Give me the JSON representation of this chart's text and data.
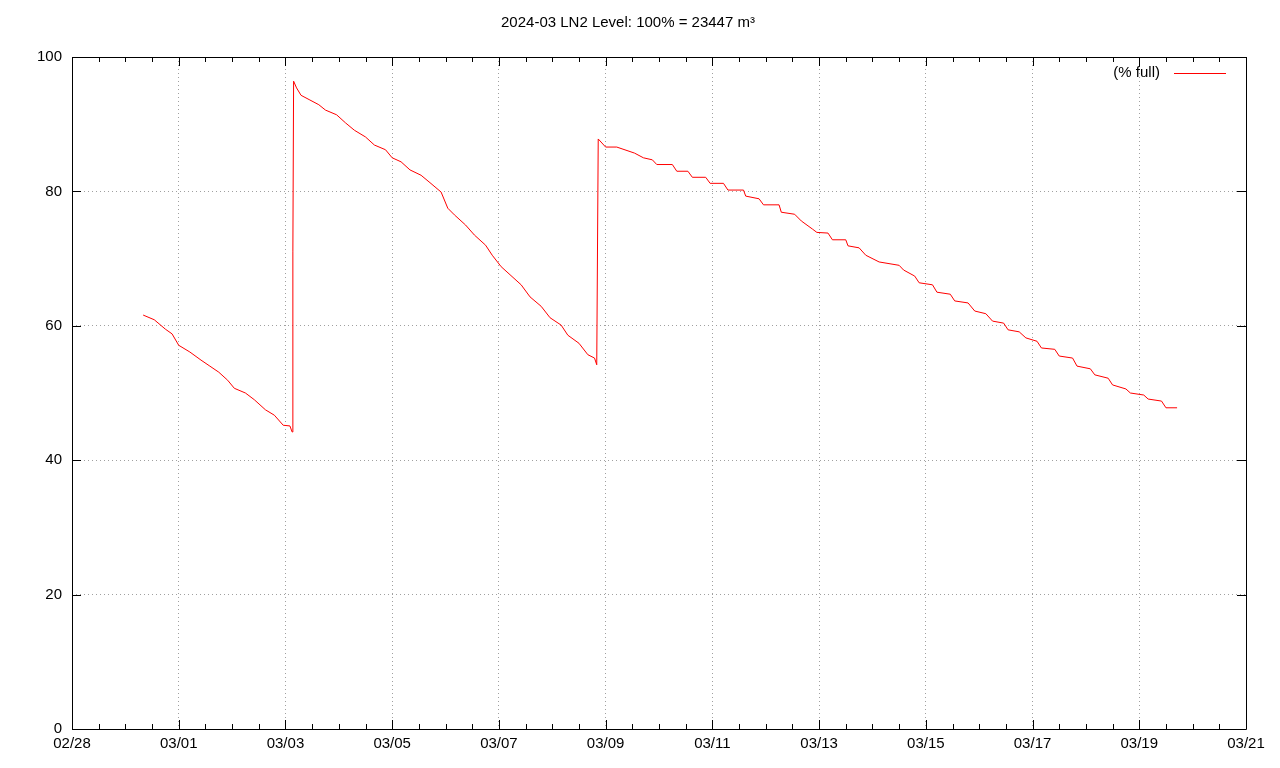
{
  "chart_data": {
    "type": "line",
    "title": "2024-03 LN2 Level: 100% = 23447 m³",
    "series": [
      {
        "name": "(% full)",
        "color": "#ff0000",
        "x": [
          "2024-02-29T08:00",
          "2024-02-29T13:00",
          "2024-02-29T18:00",
          "2024-02-29T21:00",
          "2024-03-01T00:00",
          "2024-03-01T05:00",
          "2024-03-01T10:00",
          "2024-03-01T14:00",
          "2024-03-01T18:00",
          "2024-03-01T22:00",
          "2024-03-02T01:00",
          "2024-03-02T06:00",
          "2024-03-02T10:00",
          "2024-03-02T15:00",
          "2024-03-02T19:00",
          "2024-03-02T23:00",
          "2024-03-03T02:00",
          "2024-03-03T03:00",
          "2024-03-03T03:20",
          "2024-03-03T03:40",
          "2024-03-03T05:00",
          "2024-03-03T07:00",
          "2024-03-03T11:00",
          "2024-03-03T15:00",
          "2024-03-03T18:00",
          "2024-03-03T23:00",
          "2024-03-04T03:00",
          "2024-03-04T07:00",
          "2024-03-04T12:00",
          "2024-03-04T16:00",
          "2024-03-04T21:00",
          "2024-03-05T00:00",
          "2024-03-05T04:00",
          "2024-03-05T08:00",
          "2024-03-05T13:00",
          "2024-03-05T17:00",
          "2024-03-05T22:00",
          "2024-03-06T01:00",
          "2024-03-06T04:00",
          "2024-03-06T09:00",
          "2024-03-06T13:00",
          "2024-03-06T18:00",
          "2024-03-06T21:00",
          "2024-03-07T01:00",
          "2024-03-07T05:00",
          "2024-03-07T10:00",
          "2024-03-07T14:00",
          "2024-03-07T19:00",
          "2024-03-07T23:00",
          "2024-03-08T04:00",
          "2024-03-08T07:00",
          "2024-03-08T12:00",
          "2024-03-08T16:00",
          "2024-03-08T19:00",
          "2024-03-08T20:00",
          "2024-03-08T20:40",
          "2024-03-09T00:00",
          "2024-03-09T05:00",
          "2024-03-09T13:00",
          "2024-03-09T17:00",
          "2024-03-09T21:00",
          "2024-03-09T23:00",
          "2024-03-10T06:00",
          "2024-03-10T08:00",
          "2024-03-10T13:00",
          "2024-03-10T15:00",
          "2024-03-10T21:00",
          "2024-03-10T23:00",
          "2024-03-11T05:00",
          "2024-03-11T07:00",
          "2024-03-11T14:00",
          "2024-03-11T15:00",
          "2024-03-11T21:00",
          "2024-03-11T23:00",
          "2024-03-12T06:00",
          "2024-03-12T07:00",
          "2024-03-12T13:00",
          "2024-03-12T16:00",
          "2024-03-12T21:00",
          "2024-03-12T23:00",
          "2024-03-13T04:00",
          "2024-03-13T06:00",
          "2024-03-13T12:00",
          "2024-03-13T13:00",
          "2024-03-13T18:00",
          "2024-03-13T21:00",
          "2024-03-14T03:00",
          "2024-03-14T12:00",
          "2024-03-14T14:00",
          "2024-03-14T19:00",
          "2024-03-14T21:00",
          "2024-03-15T03:00",
          "2024-03-15T05:00",
          "2024-03-15T11:00",
          "2024-03-15T13:00",
          "2024-03-15T19:00",
          "2024-03-15T22:00",
          "2024-03-16T03:00",
          "2024-03-16T06:00",
          "2024-03-16T11:00",
          "2024-03-16T13:00",
          "2024-03-16T18:00",
          "2024-03-16T21:00",
          "2024-03-17T02:00",
          "2024-03-17T04:00",
          "2024-03-17T10:00",
          "2024-03-17T12:00",
          "2024-03-17T18:00",
          "2024-03-17T20:00",
          "2024-03-18T02:00",
          "2024-03-18T04:00",
          "2024-03-18T10:00",
          "2024-03-18T12:00",
          "2024-03-18T18:00",
          "2024-03-18T20:00",
          "2024-03-19T02:00",
          "2024-03-19T04:00",
          "2024-03-19T10:00",
          "2024-03-19T12:00",
          "2024-03-19T17:00"
        ],
        "values": [
          61.6,
          60.9,
          59.5,
          58.8,
          57.1,
          56.1,
          54.9,
          54.0,
          53.1,
          51.9,
          50.7,
          50.0,
          49.0,
          47.5,
          46.7,
          45.2,
          45.1,
          44.2,
          71,
          96.4,
          95.4,
          94.3,
          93.6,
          92.9,
          92.1,
          91.4,
          90.2,
          89.1,
          88.1,
          86.9,
          86.2,
          85,
          84.4,
          83.2,
          82.4,
          81.3,
          79.9,
          77.5,
          76.5,
          75,
          73.5,
          72,
          70.5,
          68.8,
          67.6,
          66.1,
          64.3,
          62.9,
          61.2,
          60.1,
          58.6,
          57.4,
          55.7,
          55.2,
          54.2,
          87.8,
          86.6,
          86.6,
          85.7,
          85,
          84.7,
          84,
          84,
          83,
          83,
          82.1,
          82.1,
          81.2,
          81.2,
          80.2,
          80.2,
          79.3,
          78.9,
          78,
          78,
          76.9,
          76.6,
          75.6,
          74.4,
          73.9,
          73.8,
          72.8,
          72.8,
          71.9,
          71.6,
          70.5,
          69.5,
          69,
          68.3,
          67.4,
          66.4,
          66.1,
          65,
          64.7,
          63.7,
          63.4,
          62.2,
          61.8,
          60.7,
          60.4,
          59.4,
          59.1,
          58.2,
          57.7,
          56.7,
          56.5,
          55.5,
          55.2,
          54,
          53.6,
          52.7,
          52.2,
          51.2,
          50.6,
          50,
          49.7,
          49.1,
          48.8,
          47.8,
          47.8
        ]
      }
    ],
    "xlim": [
      "2024-02-28",
      "2024-03-21"
    ],
    "xticks": [
      {
        "value": "2024-02-28",
        "label": "02/28"
      },
      {
        "value": "2024-02-28T12:00",
        "label": null
      },
      {
        "value": "2024-02-29",
        "label": null
      },
      {
        "value": "2024-02-29T12:00",
        "label": null
      },
      {
        "value": "2024-03-01",
        "label": "03/01"
      },
      {
        "value": "2024-03-01T12:00",
        "label": null
      },
      {
        "value": "2024-03-02",
        "label": null
      },
      {
        "value": "2024-03-02T12:00",
        "label": null
      },
      {
        "value": "2024-03-03",
        "label": "03/03"
      },
      {
        "value": "2024-03-03T12:00",
        "label": null
      },
      {
        "value": "2024-03-04",
        "label": null
      },
      {
        "value": "2024-03-04T12:00",
        "label": null
      },
      {
        "value": "2024-03-05",
        "label": "03/05"
      },
      {
        "value": "2024-03-05T12:00",
        "label": null
      },
      {
        "value": "2024-03-06",
        "label": null
      },
      {
        "value": "2024-03-06T12:00",
        "label": null
      },
      {
        "value": "2024-03-07",
        "label": "03/07"
      },
      {
        "value": "2024-03-07T12:00",
        "label": null
      },
      {
        "value": "2024-03-08",
        "label": null
      },
      {
        "value": "2024-03-08T12:00",
        "label": null
      },
      {
        "value": "2024-03-09",
        "label": "03/09"
      },
      {
        "value": "2024-03-09T12:00",
        "label": null
      },
      {
        "value": "2024-03-10",
        "label": null
      },
      {
        "value": "2024-03-10T12:00",
        "label": null
      },
      {
        "value": "2024-03-11",
        "label": "03/11"
      },
      {
        "value": "2024-03-11T12:00",
        "label": null
      },
      {
        "value": "2024-03-12",
        "label": null
      },
      {
        "value": "2024-03-12T12:00",
        "label": null
      },
      {
        "value": "2024-03-13",
        "label": "03/13"
      },
      {
        "value": "2024-03-13T12:00",
        "label": null
      },
      {
        "value": "2024-03-14",
        "label": null
      },
      {
        "value": "2024-03-14T12:00",
        "label": null
      },
      {
        "value": "2024-03-15",
        "label": "03/15"
      },
      {
        "value": "2024-03-15T12:00",
        "label": null
      },
      {
        "value": "2024-03-16",
        "label": null
      },
      {
        "value": "2024-03-16T12:00",
        "label": null
      },
      {
        "value": "2024-03-17",
        "label": "03/17"
      },
      {
        "value": "2024-03-17T12:00",
        "label": null
      },
      {
        "value": "2024-03-18",
        "label": null
      },
      {
        "value": "2024-03-18T12:00",
        "label": null
      },
      {
        "value": "2024-03-19",
        "label": "03/19"
      },
      {
        "value": "2024-03-19T12:00",
        "label": null
      },
      {
        "value": "2024-03-20",
        "label": null
      },
      {
        "value": "2024-03-20T12:00",
        "label": null
      },
      {
        "value": "2024-03-21",
        "label": "03/21"
      }
    ],
    "ylim": [
      0,
      100
    ],
    "yticks": [
      0,
      20,
      40,
      60,
      80,
      100
    ],
    "grid": true,
    "legend": "top right",
    "marker": "none",
    "line_style": "solid"
  }
}
